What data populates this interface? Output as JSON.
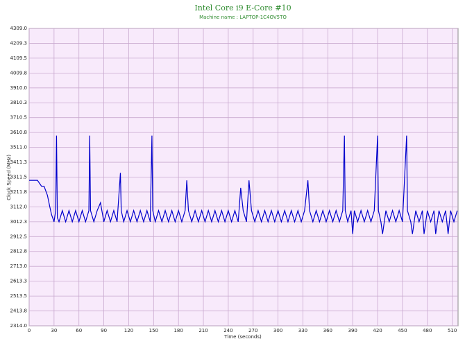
{
  "chart_data": {
    "type": "line",
    "title": "Intel Core i9 E-Core #10",
    "subtitle": "Machine name : LAPTOP-1C4OV5TO",
    "x_label": "Time (seconds)",
    "y_label": "Clock Speed (MHz)",
    "x": [
      0,
      5,
      10,
      15,
      18,
      22,
      25,
      27,
      30,
      32,
      33,
      34,
      36,
      40,
      44,
      48,
      52,
      56,
      60,
      64,
      68,
      72,
      73,
      74,
      78,
      82,
      86,
      90,
      94,
      98,
      102,
      106,
      110,
      111,
      114,
      118,
      122,
      126,
      130,
      134,
      138,
      142,
      146,
      148,
      149,
      152,
      156,
      160,
      164,
      168,
      172,
      176,
      180,
      184,
      188,
      190,
      192,
      196,
      200,
      204,
      208,
      212,
      216,
      220,
      224,
      228,
      232,
      236,
      240,
      244,
      248,
      252,
      255,
      258,
      262,
      265,
      268,
      272,
      276,
      280,
      284,
      288,
      292,
      296,
      300,
      304,
      308,
      312,
      316,
      320,
      324,
      328,
      332,
      336,
      338,
      342,
      346,
      350,
      354,
      358,
      362,
      366,
      370,
      374,
      378,
      380,
      381,
      384,
      388,
      390,
      392,
      396,
      400,
      404,
      408,
      412,
      416,
      420,
      421,
      424,
      426,
      430,
      434,
      438,
      442,
      446,
      450,
      455,
      456,
      460,
      462,
      466,
      470,
      474,
      476,
      480,
      484,
      488,
      490,
      494,
      498,
      502,
      505,
      508,
      512,
      516
    ],
    "series": [
      {
        "name": "Clock Speed",
        "color": "#0000cc",
        "values": [
          3290,
          3290,
          3290,
          3250,
          3250,
          3190,
          3110,
          3060,
          3012,
          3087,
          3590,
          3040,
          3012,
          3087,
          3012,
          3087,
          3012,
          3087,
          3012,
          3087,
          3012,
          3087,
          3590,
          3087,
          3012,
          3087,
          3140,
          3012,
          3087,
          3012,
          3087,
          3012,
          3340,
          3087,
          3012,
          3087,
          3012,
          3087,
          3012,
          3087,
          3012,
          3087,
          3012,
          3590,
          3087,
          3012,
          3087,
          3012,
          3087,
          3012,
          3087,
          3012,
          3087,
          3012,
          3087,
          3290,
          3087,
          3012,
          3087,
          3012,
          3087,
          3012,
          3087,
          3012,
          3087,
          3012,
          3087,
          3012,
          3087,
          3012,
          3087,
          3012,
          3240,
          3087,
          3012,
          3290,
          3087,
          3012,
          3087,
          3012,
          3087,
          3012,
          3087,
          3012,
          3087,
          3012,
          3087,
          3012,
          3087,
          3012,
          3087,
          3012,
          3087,
          3290,
          3087,
          3012,
          3087,
          3012,
          3087,
          3012,
          3087,
          3012,
          3087,
          3012,
          3087,
          3590,
          3087,
          3012,
          3087,
          2930,
          3087,
          3012,
          3087,
          3012,
          3087,
          3012,
          3087,
          3590,
          3087,
          3012,
          2930,
          3087,
          3012,
          3087,
          3012,
          3087,
          3012,
          3590,
          3087,
          3012,
          2930,
          3087,
          3012,
          3087,
          2930,
          3087,
          3012,
          3087,
          2930,
          3087,
          3012,
          3087,
          2930,
          3087,
          3012,
          3087
        ]
      }
    ],
    "xlim": [
      0,
      517
    ],
    "xticks": [
      0,
      30,
      60,
      90,
      120,
      150,
      180,
      210,
      240,
      270,
      300,
      330,
      360,
      390,
      420,
      450,
      480,
      510
    ],
    "ylim": [
      2314,
      4309
    ],
    "yticks": [
      {
        "value": 2314,
        "label": "2314.0"
      },
      2413.8,
      2513.5,
      2613.3,
      {
        "value": 2713,
        "label": "2713.0"
      },
      2812.8,
      2912.5,
      3012.3,
      {
        "value": 3112,
        "label": "3112.0"
      },
      3211.8,
      3311.5,
      3411.3,
      {
        "value": 3511,
        "label": "3511.0"
      },
      3610.8,
      3710.5,
      3810.3,
      {
        "value": 3910,
        "label": "3910.0"
      },
      4009.8,
      4109.5,
      4209.3,
      {
        "value": 4309,
        "label": "4309.0"
      }
    ],
    "grid": true,
    "plot_background": "#f8eafb"
  }
}
